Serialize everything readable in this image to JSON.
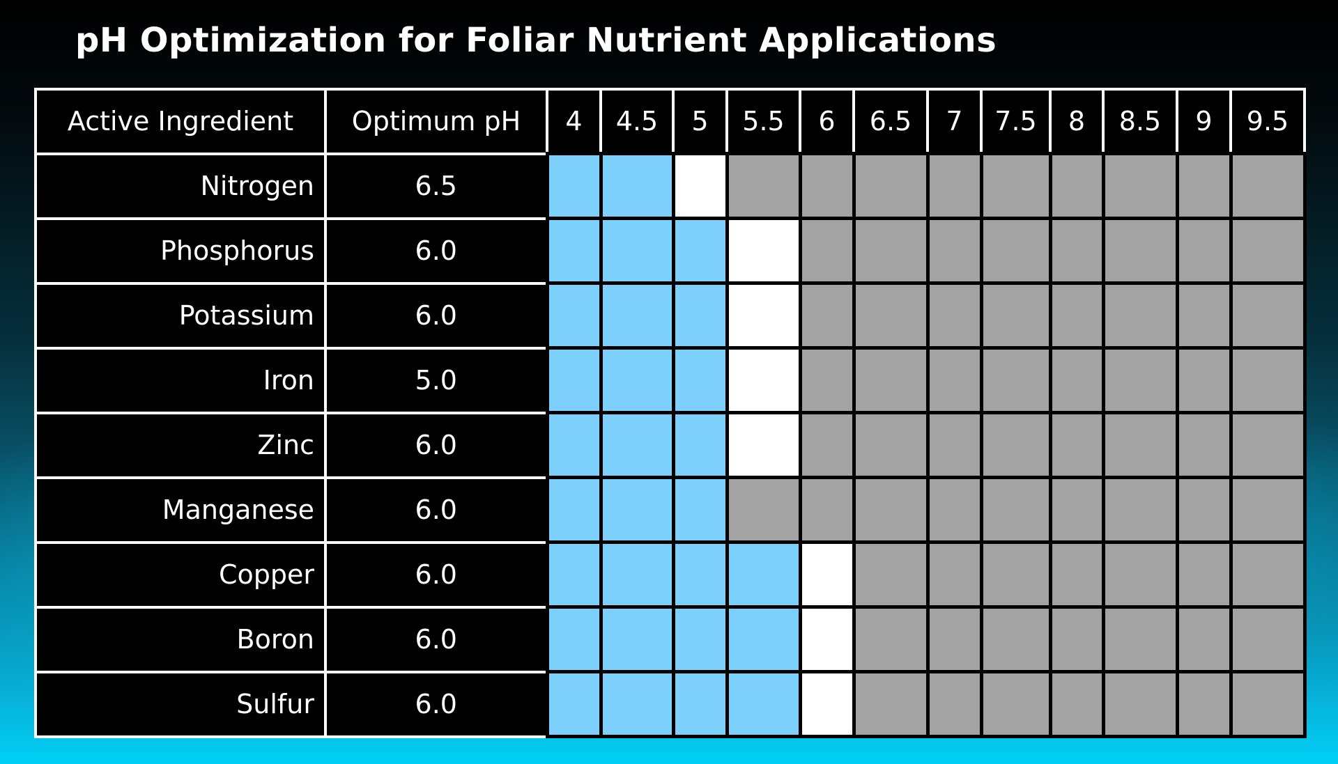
{
  "title": "pH Optimization for Foliar Nutrient Applications",
  "header": {
    "ingredient": "Active Ingredient",
    "optimum": "Optimum pH",
    "ph_levels": [
      "4",
      "4.5",
      "5",
      "5.5",
      "6",
      "6.5",
      "7",
      "7.5",
      "8",
      "8.5",
      "9",
      "9.5"
    ]
  },
  "colors": {
    "b": "#7dcffc",
    "w": "#ffffff",
    "g": "#a3a3a3"
  },
  "rows": [
    {
      "name": "Nitrogen",
      "optimum": "6.5",
      "cells": [
        "b",
        "b",
        "w",
        "g",
        "g",
        "g",
        "g",
        "g",
        "g",
        "g",
        "g",
        "g"
      ]
    },
    {
      "name": "Phosphorus",
      "optimum": "6.0",
      "cells": [
        "b",
        "b",
        "b",
        "w",
        "g",
        "g",
        "g",
        "g",
        "g",
        "g",
        "g",
        "g"
      ]
    },
    {
      "name": "Potassium",
      "optimum": "6.0",
      "cells": [
        "b",
        "b",
        "b",
        "w",
        "g",
        "g",
        "g",
        "g",
        "g",
        "g",
        "g",
        "g"
      ]
    },
    {
      "name": "Iron",
      "optimum": "5.0",
      "cells": [
        "b",
        "b",
        "b",
        "w",
        "g",
        "g",
        "g",
        "g",
        "g",
        "g",
        "g",
        "g"
      ]
    },
    {
      "name": "Zinc",
      "optimum": "6.0",
      "cells": [
        "b",
        "b",
        "b",
        "w",
        "g",
        "g",
        "g",
        "g",
        "g",
        "g",
        "g",
        "g"
      ]
    },
    {
      "name": "Manganese",
      "optimum": "6.0",
      "cells": [
        "b",
        "b",
        "b",
        "g",
        "g",
        "g",
        "g",
        "g",
        "g",
        "g",
        "g",
        "g"
      ]
    },
    {
      "name": "Copper",
      "optimum": "6.0",
      "cells": [
        "b",
        "b",
        "b",
        "b",
        "w",
        "g",
        "g",
        "g",
        "g",
        "g",
        "g",
        "g"
      ]
    },
    {
      "name": "Boron",
      "optimum": "6.0",
      "cells": [
        "b",
        "b",
        "b",
        "b",
        "w",
        "g",
        "g",
        "g",
        "g",
        "g",
        "g",
        "g"
      ]
    },
    {
      "name": "Sulfur",
      "optimum": "6.0",
      "cells": [
        "b",
        "b",
        "b",
        "b",
        "w",
        "g",
        "g",
        "g",
        "g",
        "g",
        "g",
        "g"
      ]
    }
  ]
}
